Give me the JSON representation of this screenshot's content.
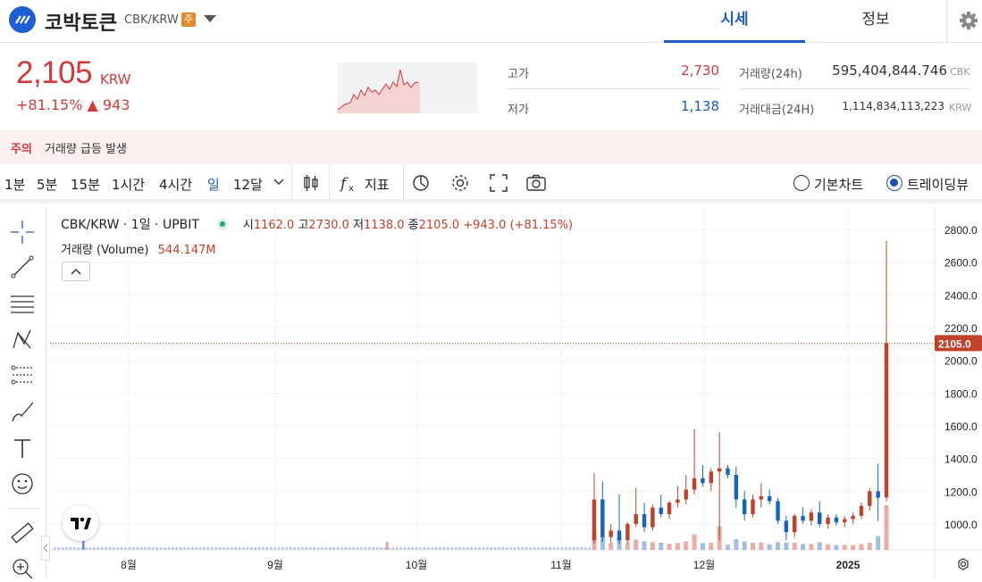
{
  "header": {
    "coin_name": "코박토큰",
    "pair": "CBK/KRW",
    "warning_badge": "주",
    "tabs": [
      {
        "label": "시세",
        "active": true
      },
      {
        "label": "정보",
        "active": false
      }
    ],
    "settings_icon": "gear-icon"
  },
  "price": {
    "current": "2,105",
    "unit": "KRW",
    "change": "+81.15% ▲ 943",
    "color_up": "#d23a3a",
    "color_down": "#1a5cc8"
  },
  "stats": {
    "high_label": "고가",
    "high_value": "2,730",
    "low_label": "저가",
    "low_value": "1,138",
    "volume_label": "거래량(24h)",
    "volume_value": "595,404,844.746",
    "volume_unit": "CBK",
    "amount_label": "거래대금(24H)",
    "amount_value": "1,114,834,113,223",
    "amount_unit": "KRW"
  },
  "notice": {
    "tag": "주의",
    "text": "거래량 급등 발생"
  },
  "toolbar": {
    "timeframes": [
      "1분",
      "5분",
      "15분",
      "1시간",
      "4시간",
      "일",
      "12달"
    ],
    "active_timeframe": "일",
    "indicator_label": "지표",
    "chart_types": [
      {
        "label": "기본차트",
        "selected": false
      },
      {
        "label": "트레이딩뷰",
        "selected": true
      }
    ]
  },
  "legend": {
    "title": "CBK/KRW · 1일 · UPBIT",
    "open_label": "시",
    "open": "1162.0",
    "high_label": "고",
    "high": "2730.0",
    "low_label": "저",
    "low": "1138.0",
    "close_label": "종",
    "close": "2105.0",
    "change": "+943.0 (+81.15%)",
    "volume_label": "거래량 (Volume)",
    "volume_value": "544.147M"
  },
  "chart_data": {
    "type": "candlestick",
    "x_labels": [
      "8월",
      "9월",
      "10월",
      "11월",
      "12월",
      "2025"
    ],
    "y_ticks": [
      "2800.0",
      "2600.0",
      "2400.0",
      "2200.0",
      "2000.0",
      "1800.0",
      "1600.0",
      "1400.0",
      "1200.0",
      "1000.0"
    ],
    "ylim": [
      880,
      2900
    ],
    "current_price_label": "2105.0",
    "current_price": 2105,
    "up_color": "#c2412a",
    "down_color": "#1565c0",
    "candles": [
      {
        "o": 900,
        "h": 1310,
        "l": 880,
        "c": 1150
      },
      {
        "o": 1150,
        "h": 1260,
        "l": 890,
        "c": 920
      },
      {
        "o": 920,
        "h": 1000,
        "l": 880,
        "c": 960
      },
      {
        "o": 960,
        "h": 1180,
        "l": 880,
        "c": 900
      },
      {
        "o": 900,
        "h": 1010,
        "l": 880,
        "c": 1000
      },
      {
        "o": 1000,
        "h": 1220,
        "l": 980,
        "c": 1060
      },
      {
        "o": 1060,
        "h": 1130,
        "l": 950,
        "c": 980
      },
      {
        "o": 980,
        "h": 1120,
        "l": 960,
        "c": 1100
      },
      {
        "o": 1100,
        "h": 1180,
        "l": 1040,
        "c": 1060
      },
      {
        "o": 1060,
        "h": 1140,
        "l": 1030,
        "c": 1130
      },
      {
        "o": 1130,
        "h": 1230,
        "l": 1100,
        "c": 1150
      },
      {
        "o": 1150,
        "h": 1300,
        "l": 1120,
        "c": 1210
      },
      {
        "o": 1210,
        "h": 1580,
        "l": 1180,
        "c": 1280
      },
      {
        "o": 1280,
        "h": 1360,
        "l": 1230,
        "c": 1250
      },
      {
        "o": 1250,
        "h": 1340,
        "l": 1200,
        "c": 1320
      },
      {
        "o": 1320,
        "h": 1560,
        "l": 900,
        "c": 1340
      },
      {
        "o": 1340,
        "h": 1360,
        "l": 1280,
        "c": 1300
      },
      {
        "o": 1300,
        "h": 1350,
        "l": 1100,
        "c": 1150
      },
      {
        "o": 1150,
        "h": 1200,
        "l": 1020,
        "c": 1060
      },
      {
        "o": 1060,
        "h": 1180,
        "l": 1040,
        "c": 1150
      },
      {
        "o": 1150,
        "h": 1250,
        "l": 1100,
        "c": 1170
      },
      {
        "o": 1170,
        "h": 1210,
        "l": 1120,
        "c": 1140
      },
      {
        "o": 1140,
        "h": 1160,
        "l": 1000,
        "c": 1020
      },
      {
        "o": 1020,
        "h": 1050,
        "l": 900,
        "c": 950
      },
      {
        "o": 950,
        "h": 1060,
        "l": 920,
        "c": 1050
      },
      {
        "o": 1050,
        "h": 1100,
        "l": 1000,
        "c": 1020
      },
      {
        "o": 1020,
        "h": 1090,
        "l": 990,
        "c": 1070
      },
      {
        "o": 1070,
        "h": 1140,
        "l": 980,
        "c": 1000
      },
      {
        "o": 1000,
        "h": 1060,
        "l": 970,
        "c": 1040
      },
      {
        "o": 1040,
        "h": 1060,
        "l": 990,
        "c": 1010
      },
      {
        "o": 1010,
        "h": 1050,
        "l": 980,
        "c": 1030
      },
      {
        "o": 1030,
        "h": 1070,
        "l": 1000,
        "c": 1050
      },
      {
        "o": 1050,
        "h": 1130,
        "l": 1030,
        "c": 1110
      },
      {
        "o": 1110,
        "h": 1220,
        "l": 1080,
        "c": 1200
      },
      {
        "o": 1200,
        "h": 1370,
        "l": 1020,
        "c": 1160
      },
      {
        "o": 1162,
        "h": 2730,
        "l": 1138,
        "c": 2105
      }
    ]
  },
  "drawing_tools": [
    "crosshair-icon",
    "trend-line-icon",
    "horizontal-lines-icon",
    "pattern-icon",
    "fib-icon",
    "brush-icon",
    "text-icon",
    "emoji-icon",
    "ruler-icon",
    "zoom-icon"
  ]
}
